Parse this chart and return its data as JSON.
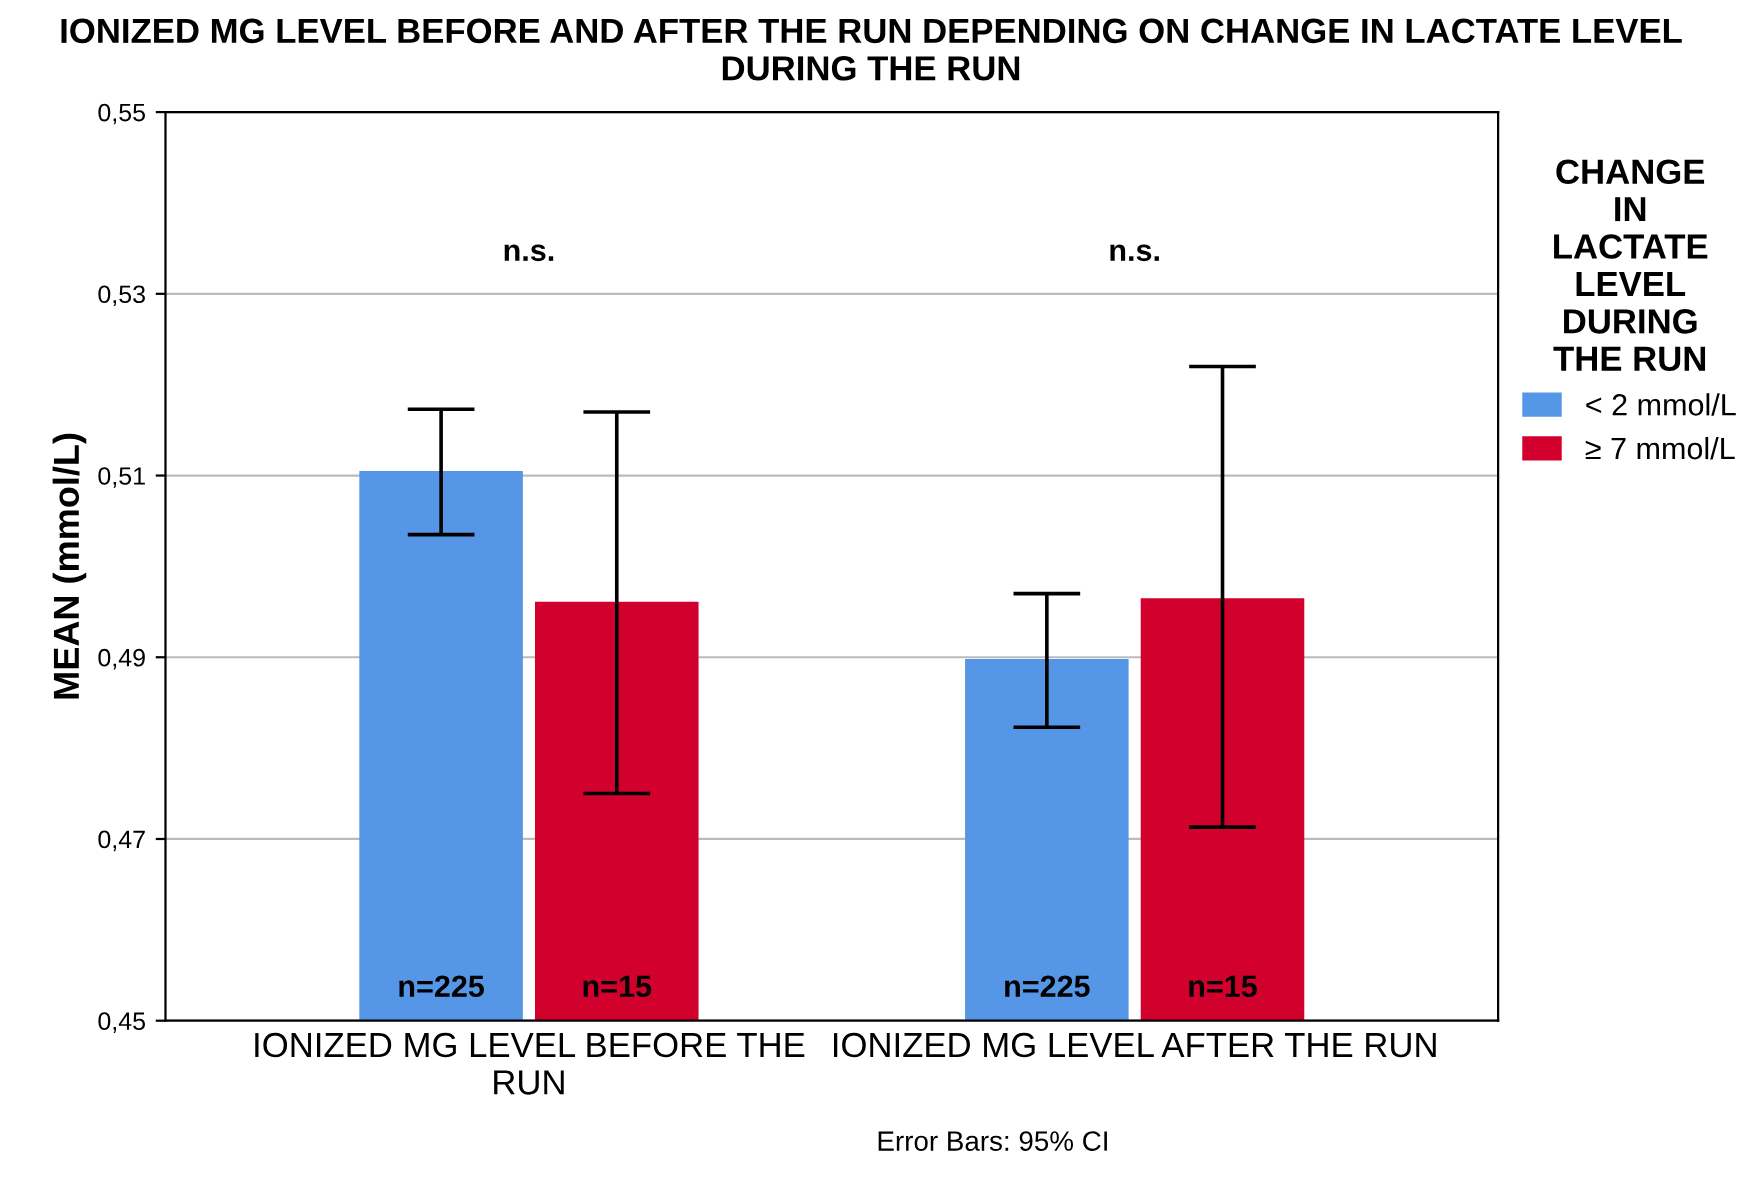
{
  "chart_data": {
    "type": "bar",
    "title": "IONIZED MG LEVEL BEFORE AND AFTER THE RUN DEPENDING ON CHANGE IN LACTATE LEVEL DURING THE RUN",
    "ylabel": "MEAN (mmol/L)",
    "legend_title": "CHANGE\nIN\nLACTATE\nLEVEL\nDURING\nTHE RUN",
    "categories": [
      "IONIZED MG LEVEL BEFORE THE\nRUN",
      "IONIZED MG LEVEL AFTER THE RUN"
    ],
    "series": [
      {
        "name": "< 2 mmol/L",
        "color": "#5596e6",
        "values": [
          0.5105,
          0.4898
        ],
        "errors": [
          [
            0.5035,
            0.5173
          ],
          [
            0.4823,
            0.497
          ]
        ]
      },
      {
        "name": "≥ 7 mmol/L",
        "color": "#d1002d",
        "values": [
          0.4961,
          0.4965
        ],
        "errors": [
          [
            0.475,
            0.517
          ],
          [
            0.4713,
            0.522
          ]
        ]
      }
    ],
    "ylim": [
      0.45,
      0.55
    ],
    "yticks": [
      {
        "value": 0.45,
        "label": "0,45"
      },
      {
        "value": 0.47,
        "label": "0,47"
      },
      {
        "value": 0.49,
        "label": "0,49"
      },
      {
        "value": 0.51,
        "label": "0,51"
      },
      {
        "value": 0.53,
        "label": "0,53"
      },
      {
        "value": 0.55,
        "label": "0,55"
      }
    ],
    "grid": "y",
    "legend": "right",
    "annotations": [
      "n.s.",
      "n.s.",
      "n=225",
      "n=15",
      "n=225",
      "n=15",
      "Error Bars: 95% CI"
    ]
  }
}
